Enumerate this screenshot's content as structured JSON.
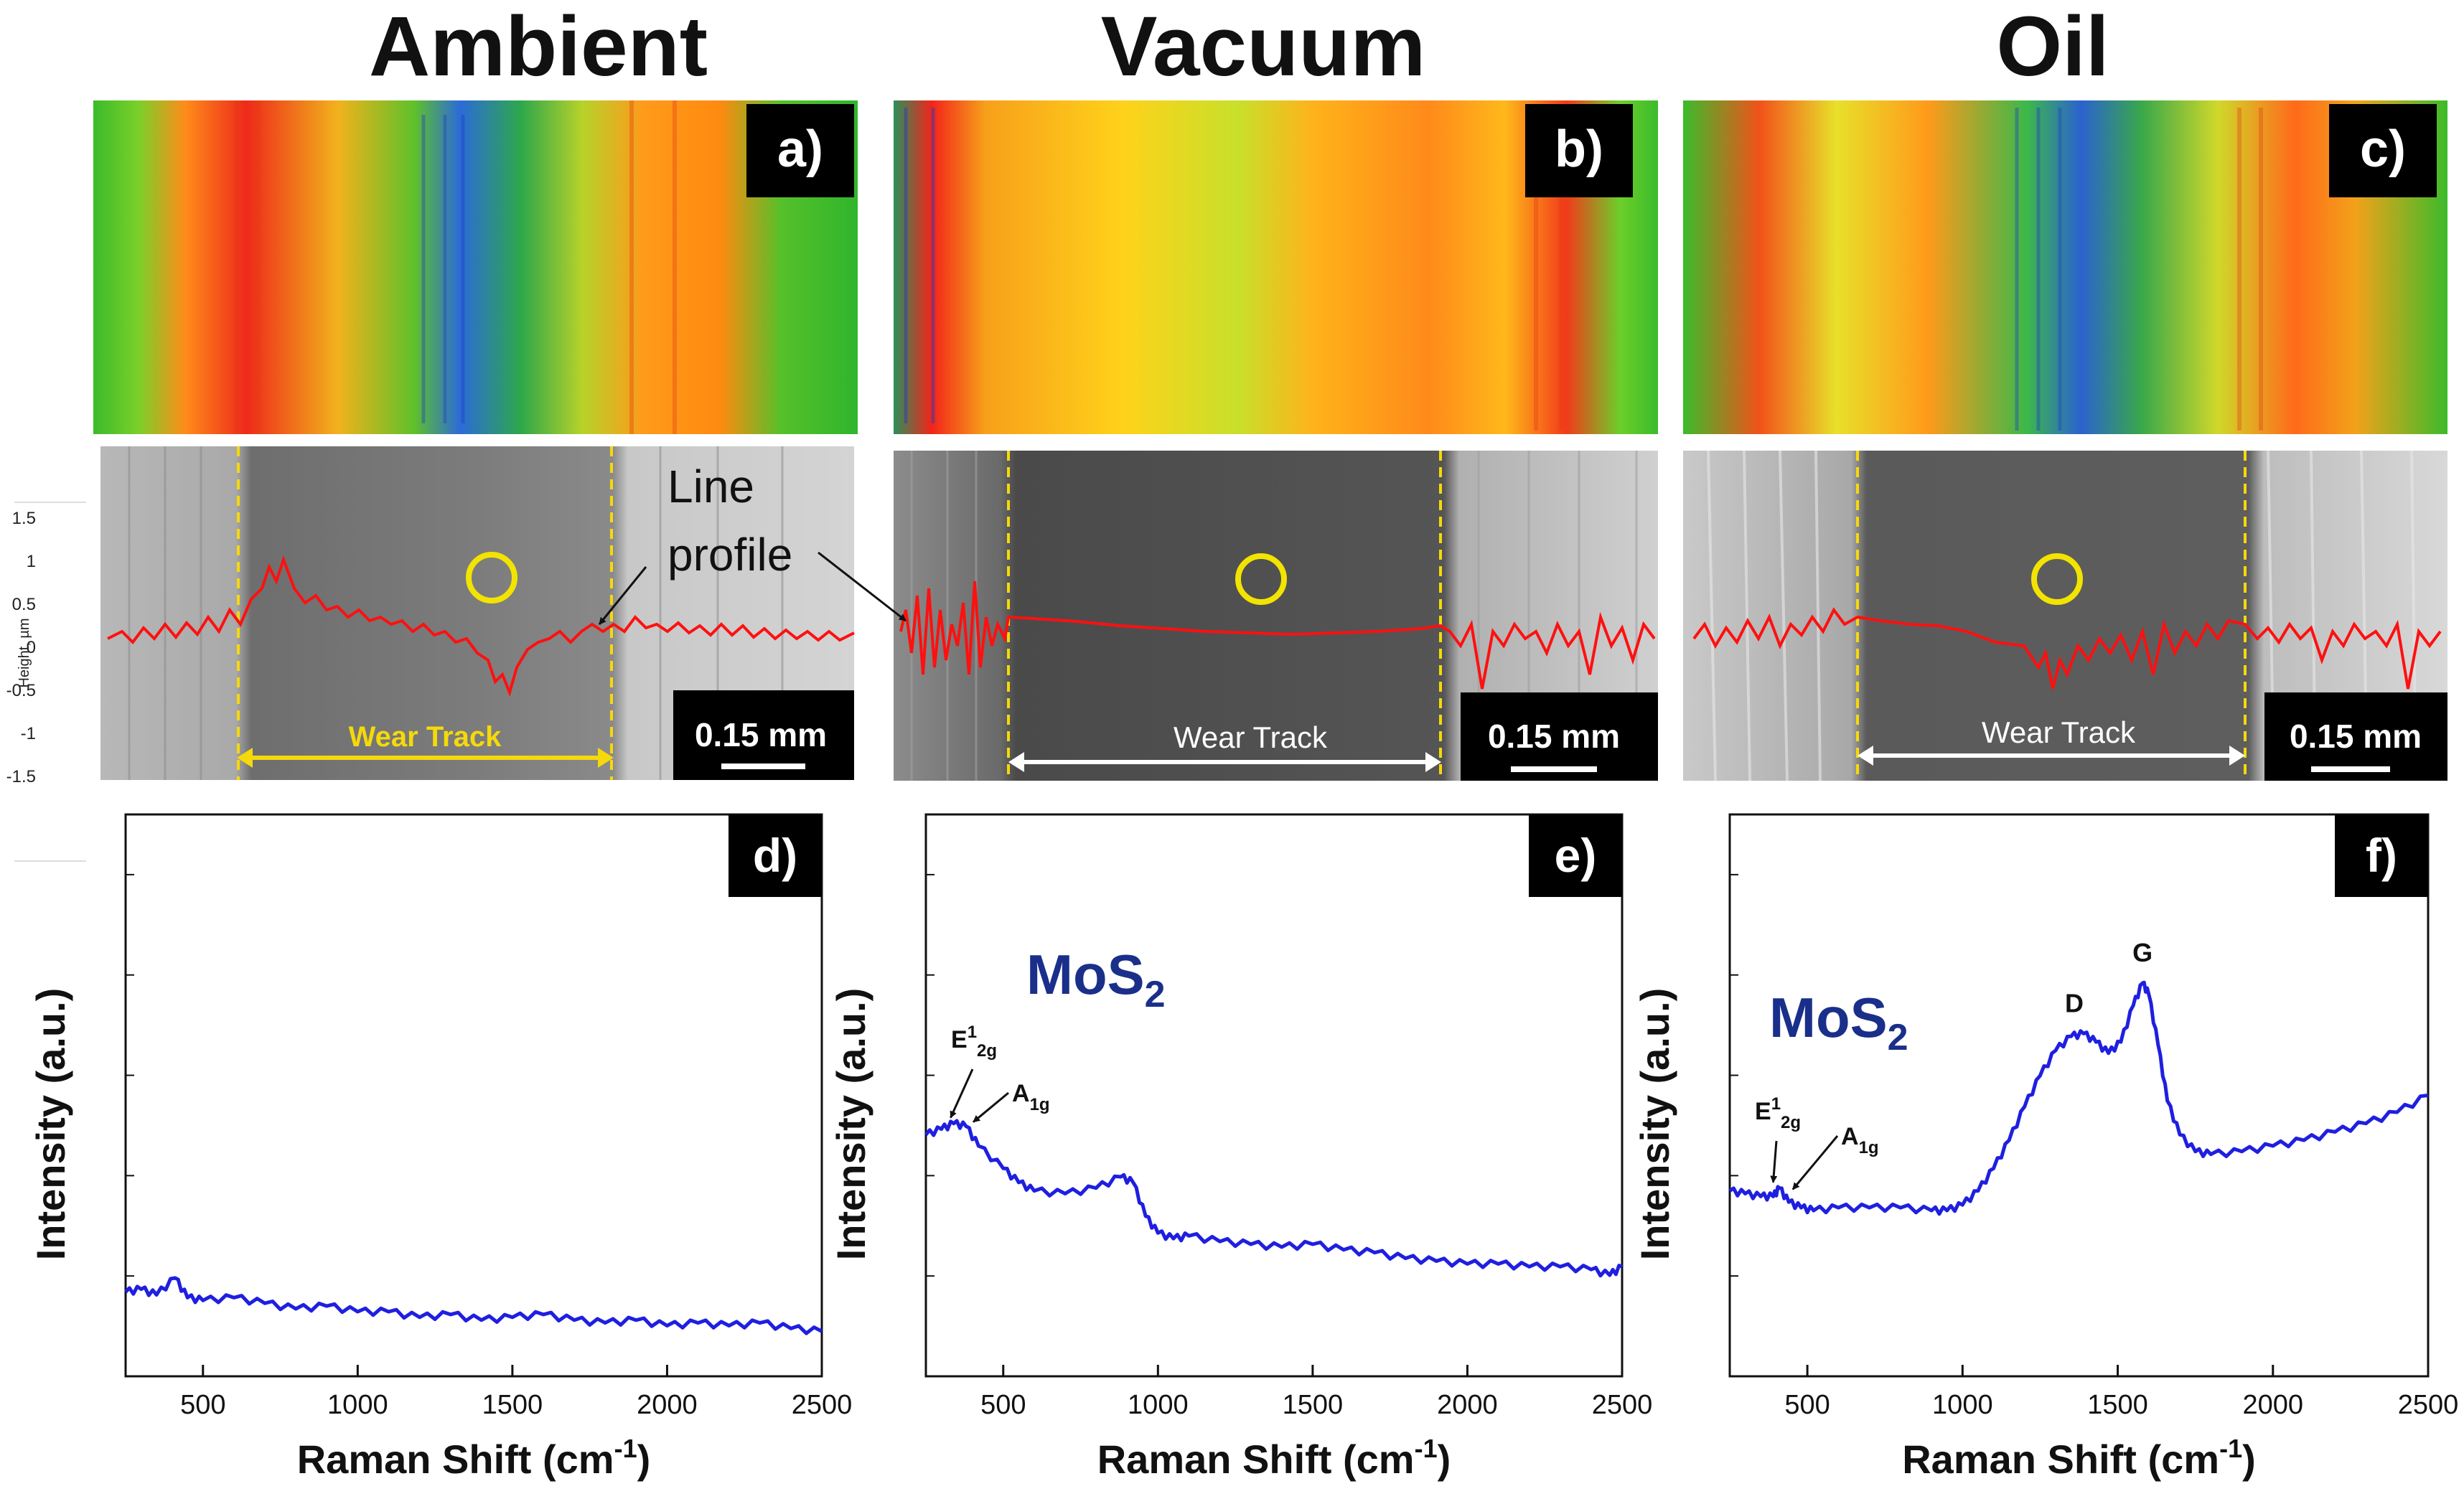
{
  "titles": [
    "Ambient",
    "Vacuum",
    "Oil"
  ],
  "panel_letters": [
    "a)",
    "b)",
    "c)",
    "d)",
    "e)",
    "f)"
  ],
  "images": {
    "scale_label": "0.15 mm",
    "wear_track_label": "Wear Track",
    "line_profile_label": [
      "Line",
      "profile"
    ],
    "height_axis": {
      "label": "Height, µm",
      "ticks": [
        "1.5",
        "1",
        "0.5",
        "0",
        "-0.5",
        "-1",
        "-1.5"
      ]
    }
  },
  "chart_data": [
    {
      "type": "line",
      "panel": "d)",
      "xlabel": "Raman Shift (cm-1)",
      "ylabel": "Intensity (a.u.)",
      "xlim": [
        250,
        2500
      ],
      "ylim": [
        0,
        10
      ],
      "xticks": [
        500,
        1000,
        1500,
        2000,
        2500
      ],
      "series": [
        {
          "color": "#1f1fe0",
          "points": [
            [
              250,
              1.5
            ],
            [
              300,
              1.55
            ],
            [
              350,
              1.45
            ],
            [
              410,
              1.75
            ],
            [
              450,
              1.4
            ],
            [
              500,
              1.35
            ],
            [
              600,
              1.4
            ],
            [
              700,
              1.3
            ],
            [
              800,
              1.2
            ],
            [
              900,
              1.25
            ],
            [
              1000,
              1.15
            ],
            [
              1100,
              1.15
            ],
            [
              1200,
              1.05
            ],
            [
              1300,
              1.1
            ],
            [
              1400,
              1.0
            ],
            [
              1500,
              1.05
            ],
            [
              1600,
              1.1
            ],
            [
              1700,
              1.0
            ],
            [
              1800,
              0.95
            ],
            [
              1900,
              1.0
            ],
            [
              2000,
              0.9
            ],
            [
              2100,
              0.95
            ],
            [
              2200,
              0.9
            ],
            [
              2300,
              0.95
            ],
            [
              2400,
              0.85
            ],
            [
              2500,
              0.8
            ]
          ]
        }
      ]
    },
    {
      "type": "line",
      "panel": "e)",
      "xlabel": "Raman Shift (cm-1)",
      "ylabel": "Intensity (a.u.)",
      "xlim": [
        250,
        2500
      ],
      "ylim": [
        0,
        10
      ],
      "xticks": [
        500,
        1000,
        1500,
        2000,
        2500
      ],
      "annotations": {
        "compound": "MoS",
        "compound_sub": "2",
        "peak1_main": "E",
        "peak1_sup": "1",
        "peak1_sub": "2g",
        "peak2_main": "A",
        "peak2_sub": "1g"
      },
      "series": [
        {
          "color": "#1f1fe0",
          "points": [
            [
              250,
              4.3
            ],
            [
              300,
              4.4
            ],
            [
              340,
              4.5
            ],
            [
              380,
              4.45
            ],
            [
              420,
              4.1
            ],
            [
              500,
              3.7
            ],
            [
              550,
              3.45
            ],
            [
              600,
              3.3
            ],
            [
              700,
              3.25
            ],
            [
              800,
              3.35
            ],
            [
              880,
              3.55
            ],
            [
              920,
              3.45
            ],
            [
              960,
              2.85
            ],
            [
              1000,
              2.55
            ],
            [
              1050,
              2.45
            ],
            [
              1100,
              2.5
            ],
            [
              1200,
              2.4
            ],
            [
              1300,
              2.35
            ],
            [
              1400,
              2.3
            ],
            [
              1500,
              2.35
            ],
            [
              1600,
              2.25
            ],
            [
              1700,
              2.2
            ],
            [
              1800,
              2.1
            ],
            [
              1900,
              2.05
            ],
            [
              2000,
              2.0
            ],
            [
              2100,
              2.0
            ],
            [
              2200,
              1.95
            ],
            [
              2300,
              1.95
            ],
            [
              2400,
              1.9
            ],
            [
              2460,
              1.8
            ],
            [
              2500,
              1.95
            ]
          ]
        }
      ]
    },
    {
      "type": "line",
      "panel": "f)",
      "xlabel": "Raman Shift (cm-1)",
      "ylabel": "Intensity (a.u.)",
      "xlim": [
        250,
        2500
      ],
      "ylim": [
        0,
        10
      ],
      "xticks": [
        500,
        1000,
        1500,
        2000,
        2500
      ],
      "annotations": {
        "compound": "MoS",
        "compound_sub": "2",
        "peak1_main": "E",
        "peak1_sup": "1",
        "peak1_sub": "2g",
        "peak2_main": "A",
        "peak2_sub": "1g",
        "d_label": "D",
        "g_label": "G"
      },
      "series": [
        {
          "color": "#1f1fe0",
          "points": [
            [
              250,
              3.3
            ],
            [
              300,
              3.25
            ],
            [
              350,
              3.2
            ],
            [
              390,
              3.2
            ],
            [
              410,
              3.35
            ],
            [
              440,
              3.1
            ],
            [
              480,
              3.0
            ],
            [
              520,
              2.95
            ],
            [
              600,
              3.0
            ],
            [
              700,
              3.0
            ],
            [
              800,
              3.0
            ],
            [
              900,
              2.95
            ],
            [
              950,
              2.95
            ],
            [
              1000,
              3.05
            ],
            [
              1050,
              3.3
            ],
            [
              1100,
              3.7
            ],
            [
              1150,
              4.2
            ],
            [
              1200,
              4.8
            ],
            [
              1250,
              5.35
            ],
            [
              1300,
              5.8
            ],
            [
              1350,
              6.05
            ],
            [
              1390,
              6.1
            ],
            [
              1430,
              5.95
            ],
            [
              1470,
              5.75
            ],
            [
              1510,
              5.95
            ],
            [
              1550,
              6.6
            ],
            [
              1580,
              7.0
            ],
            [
              1600,
              6.8
            ],
            [
              1630,
              5.9
            ],
            [
              1660,
              4.9
            ],
            [
              1700,
              4.3
            ],
            [
              1750,
              4.0
            ],
            [
              1800,
              3.95
            ],
            [
              1900,
              4.0
            ],
            [
              2000,
              4.1
            ],
            [
              2100,
              4.2
            ],
            [
              2200,
              4.35
            ],
            [
              2300,
              4.5
            ],
            [
              2400,
              4.7
            ],
            [
              2500,
              5.0
            ]
          ]
        }
      ]
    }
  ]
}
